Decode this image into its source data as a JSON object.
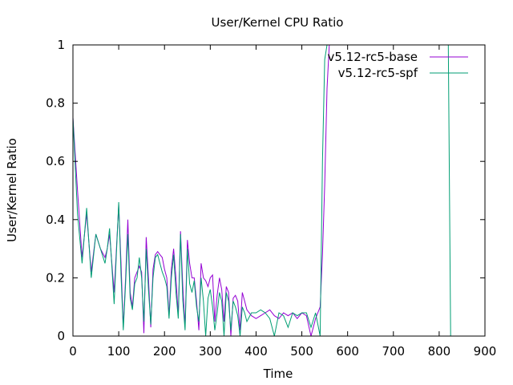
{
  "chart_data": {
    "type": "line",
    "title": "User/Kernel CPU Ratio",
    "xlabel": "Time",
    "ylabel": "User/Kernel Ratio",
    "xlim": [
      0,
      900
    ],
    "ylim": [
      0,
      1
    ],
    "x_ticks": [
      "0",
      "100",
      "200",
      "300",
      "400",
      "500",
      "600",
      "700",
      "800",
      "900"
    ],
    "y_ticks": [
      "0",
      "0.2",
      "0.4",
      "0.6",
      "0.8",
      "1"
    ],
    "grid": false,
    "legend_position": "top-right",
    "series": [
      {
        "name": "v5.12-rc5-base",
        "color": "#9400d3",
        "x": [
          0,
          10,
          20,
          30,
          40,
          50,
          60,
          70,
          75,
          80,
          90,
          100,
          105,
          110,
          115,
          120,
          125,
          130,
          135,
          140,
          145,
          150,
          155,
          160,
          165,
          170,
          175,
          180,
          185,
          190,
          195,
          200,
          205,
          210,
          215,
          220,
          225,
          230,
          235,
          240,
          245,
          250,
          255,
          260,
          265,
          270,
          275,
          280,
          285,
          290,
          295,
          300,
          305,
          310,
          315,
          320,
          325,
          330,
          335,
          340,
          345,
          350,
          355,
          360,
          365,
          370,
          375,
          380,
          390,
          400,
          410,
          420,
          430,
          440,
          450,
          460,
          470,
          480,
          490,
          500,
          510,
          520,
          530,
          540,
          545,
          550,
          555,
          560
        ],
        "y": [
          0.75,
          0.5,
          0.27,
          0.42,
          0.22,
          0.35,
          0.3,
          0.27,
          0.3,
          0.35,
          0.15,
          0.45,
          0.25,
          0.03,
          0.2,
          0.4,
          0.15,
          0.1,
          0.2,
          0.22,
          0.24,
          0.22,
          0.01,
          0.34,
          0.2,
          0.03,
          0.23,
          0.28,
          0.29,
          0.28,
          0.27,
          0.23,
          0.2,
          0.07,
          0.23,
          0.3,
          0.2,
          0.07,
          0.36,
          0.17,
          0.03,
          0.33,
          0.25,
          0.2,
          0.2,
          0.12,
          0.02,
          0.25,
          0.2,
          0.19,
          0.17,
          0.2,
          0.21,
          0.05,
          0.14,
          0.2,
          0.16,
          0.05,
          0.17,
          0.15,
          0.0,
          0.13,
          0.14,
          0.12,
          0.02,
          0.15,
          0.12,
          0.09,
          0.07,
          0.06,
          0.07,
          0.08,
          0.09,
          0.07,
          0.06,
          0.08,
          0.07,
          0.08,
          0.06,
          0.08,
          0.07,
          0.0,
          0.06,
          0.1,
          0.28,
          0.52,
          0.85,
          1.0
        ]
      },
      {
        "name": "v5.12-rc5-spf",
        "color": "#009e73",
        "x": [
          0,
          10,
          20,
          30,
          40,
          50,
          60,
          70,
          75,
          80,
          90,
          100,
          105,
          110,
          115,
          120,
          125,
          130,
          135,
          140,
          145,
          150,
          155,
          160,
          165,
          170,
          175,
          180,
          185,
          190,
          195,
          200,
          205,
          210,
          215,
          220,
          225,
          230,
          235,
          240,
          245,
          250,
          255,
          260,
          265,
          270,
          275,
          280,
          285,
          290,
          295,
          300,
          305,
          310,
          315,
          320,
          325,
          330,
          335,
          340,
          345,
          350,
          355,
          360,
          365,
          370,
          375,
          380,
          390,
          400,
          410,
          420,
          430,
          440,
          450,
          460,
          470,
          480,
          490,
          500,
          510,
          520,
          530,
          540,
          545,
          550,
          555,
          560,
          820,
          825
        ],
        "y": [
          0.75,
          0.42,
          0.25,
          0.44,
          0.2,
          0.35,
          0.3,
          0.25,
          0.3,
          0.37,
          0.11,
          0.46,
          0.21,
          0.02,
          0.18,
          0.35,
          0.13,
          0.09,
          0.18,
          0.2,
          0.27,
          0.2,
          0.05,
          0.3,
          0.16,
          0.04,
          0.2,
          0.27,
          0.28,
          0.25,
          0.22,
          0.2,
          0.17,
          0.06,
          0.2,
          0.28,
          0.15,
          0.06,
          0.35,
          0.12,
          0.02,
          0.3,
          0.18,
          0.15,
          0.19,
          0.1,
          0.05,
          0.2,
          0.12,
          0.0,
          0.13,
          0.16,
          0.1,
          0.02,
          0.08,
          0.15,
          0.12,
          0.0,
          0.15,
          0.12,
          0.02,
          0.12,
          0.1,
          0.07,
          0.0,
          0.1,
          0.08,
          0.05,
          0.08,
          0.08,
          0.09,
          0.08,
          0.06,
          0.0,
          0.08,
          0.07,
          0.03,
          0.08,
          0.07,
          0.08,
          0.08,
          0.03,
          0.08,
          0.0,
          0.6,
          0.95,
          1.0,
          1.0,
          1.0,
          0.0
        ]
      }
    ]
  }
}
